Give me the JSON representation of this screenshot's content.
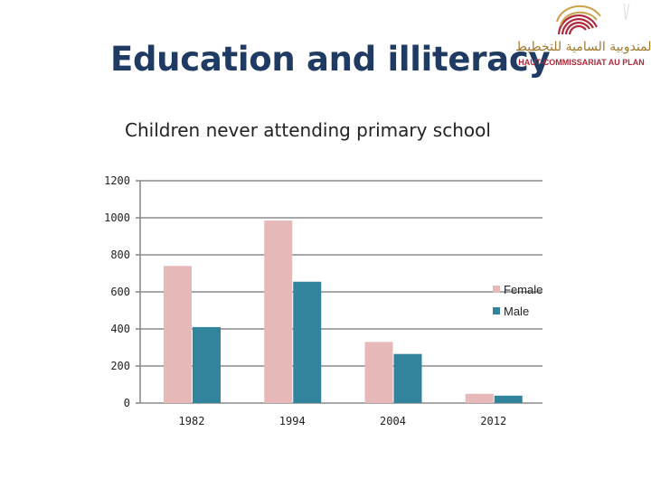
{
  "slide": {
    "title": "Education and illiteracy",
    "logo": {
      "arabic_text": "المندوبية السامية للتخطيط",
      "latin_text": "HAUT-COMMISSARIAT AU PLAN"
    }
  },
  "chart_data": {
    "type": "bar",
    "title": "Children never attending primary school",
    "categories": [
      "1982",
      "1994",
      "2004",
      "2012"
    ],
    "series": [
      {
        "name": "Female",
        "color": "#e6b9b8",
        "values": [
          740,
          985,
          330,
          50
        ]
      },
      {
        "name": "Male",
        "color": "#31849b",
        "values": [
          410,
          655,
          265,
          40
        ]
      }
    ],
    "y_ticks": [
      "0",
      "200",
      "400",
      "600",
      "800",
      "1000",
      "1200"
    ],
    "ylim": [
      0,
      1200
    ],
    "grid": true,
    "legend_position": "right"
  }
}
